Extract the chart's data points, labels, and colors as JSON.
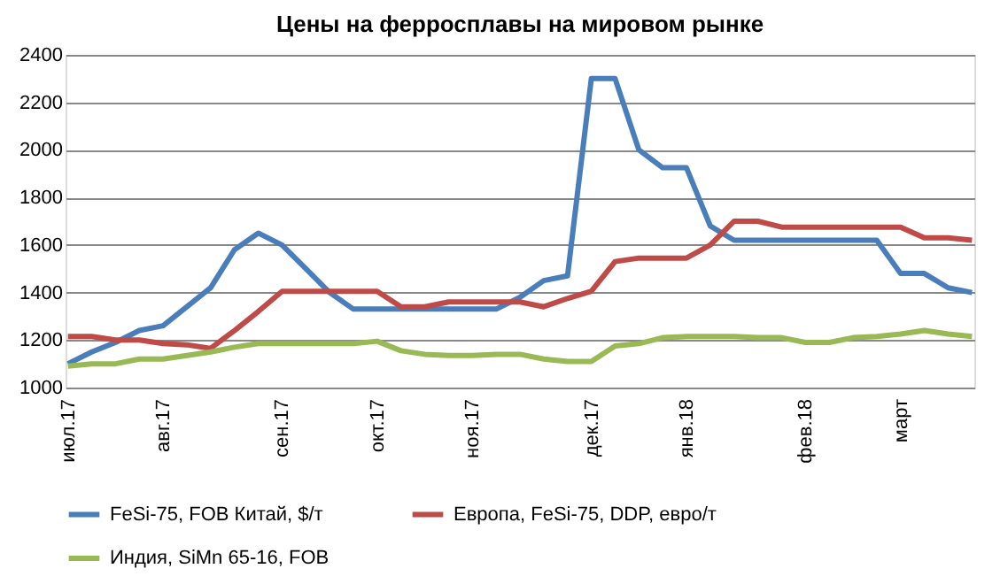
{
  "chart_data": {
    "type": "line",
    "title": "Цены на ферросплавы на мировом рынке",
    "categories": [
      "июл.17",
      null,
      null,
      null,
      "авг.17",
      null,
      null,
      null,
      null,
      "сен.17",
      null,
      null,
      null,
      "окт.17",
      null,
      null,
      null,
      "ноя.17",
      null,
      null,
      null,
      null,
      "дек.17",
      null,
      null,
      null,
      "янв.18",
      null,
      null,
      null,
      null,
      "фев.18",
      null,
      null,
      null,
      "март",
      null,
      null,
      null
    ],
    "series": [
      {
        "name": "FeSi-75, FOB Китай, $/т",
        "color": "#4a7ebb",
        "values": [
          1100,
          1150,
          1190,
          1240,
          1260,
          1340,
          1420,
          1580,
          1650,
          1600,
          1500,
          1400,
          1330,
          1330,
          1330,
          1330,
          1330,
          1330,
          1330,
          1380,
          1450,
          1470,
          2300,
          2300,
          2000,
          1925,
          1925,
          1680,
          1620,
          1620,
          1620,
          1620,
          1620,
          1620,
          1620,
          1480,
          1480,
          1420,
          1400
        ]
      },
      {
        "name": "Европа, FeSi-75, DDP, евро/т",
        "color": "#be4b48",
        "values": [
          1215,
          1215,
          1200,
          1200,
          1185,
          1180,
          1165,
          1240,
          1320,
          1405,
          1405,
          1405,
          1405,
          1405,
          1340,
          1340,
          1360,
          1360,
          1360,
          1360,
          1340,
          1375,
          1405,
          1530,
          1545,
          1545,
          1545,
          1600,
          1700,
          1700,
          1675,
          1675,
          1675,
          1675,
          1675,
          1675,
          1630,
          1630,
          1620
        ]
      },
      {
        "name": "Индия, SiMn 65-16, FOB",
        "color": "#98b954",
        "values": [
          1090,
          1100,
          1100,
          1120,
          1120,
          1135,
          1150,
          1170,
          1185,
          1185,
          1185,
          1185,
          1185,
          1195,
          1155,
          1140,
          1135,
          1135,
          1140,
          1140,
          1120,
          1110,
          1110,
          1175,
          1185,
          1210,
          1215,
          1215,
          1215,
          1210,
          1210,
          1190,
          1190,
          1210,
          1215,
          1225,
          1240,
          1225,
          1215
        ]
      }
    ],
    "ylim": [
      1000,
      2400
    ],
    "yticks": [
      1000,
      1200,
      1400,
      1600,
      1800,
      2000,
      2200,
      2400
    ],
    "grid": "y",
    "legend": "bottom",
    "marker": "none",
    "line_style": "solid"
  }
}
